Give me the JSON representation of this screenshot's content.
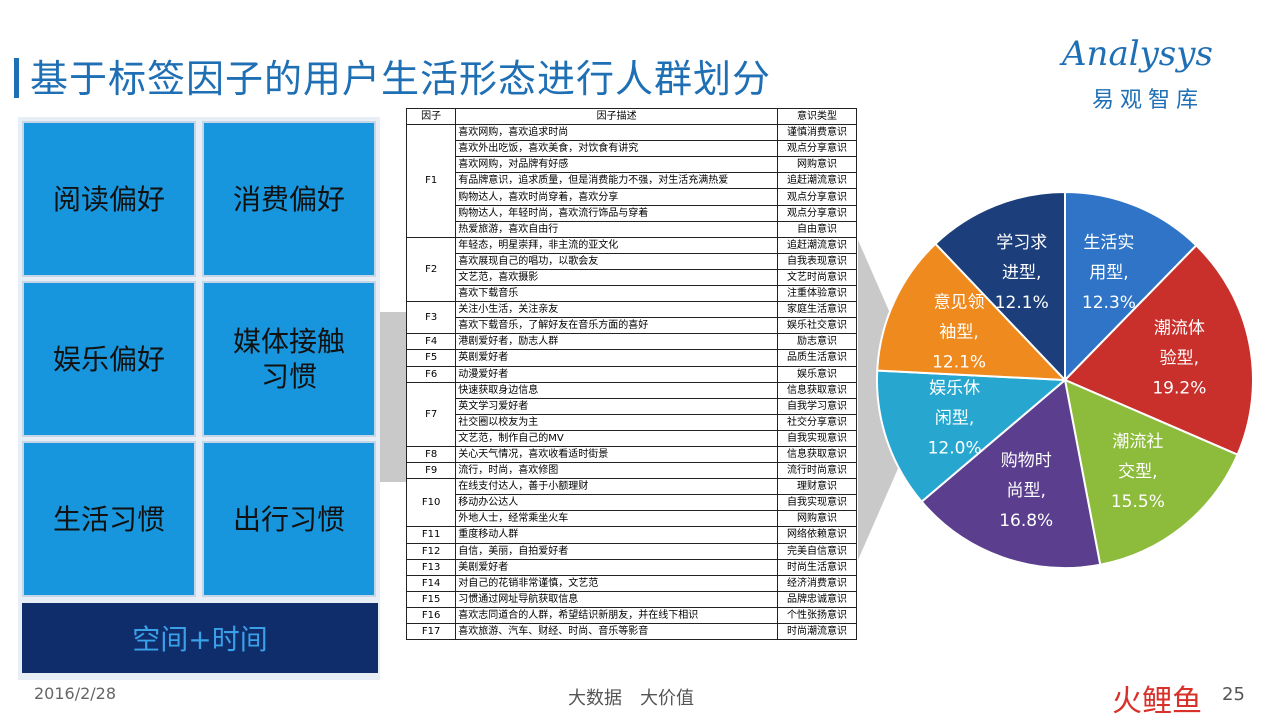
{
  "header": {
    "title": "基于标签因子的用户生活形态进行人群划分"
  },
  "logo": {
    "en": "Analysys",
    "cn": "易观智库"
  },
  "tiles": [
    "阅读偏好",
    "消费偏好",
    "娱乐偏好",
    "媒体接触习惯",
    "生活习惯",
    "出行习惯"
  ],
  "tile_bottom": "空间+时间",
  "table": {
    "headers": [
      "因子",
      "因子描述",
      "意识类型"
    ],
    "groups": [
      {
        "factor": "F1",
        "rows": [
          [
            "喜欢网购，喜欢追求时尚",
            "谨慎消费意识"
          ],
          [
            "喜欢外出吃饭，喜欢美食，对饮食有讲究",
            "观点分享意识"
          ],
          [
            "喜欢网购，对品牌有好感",
            "网购意识"
          ],
          [
            "有品牌意识，追求质量，但是消费能力不强，对生活充满热爱",
            "追赶潮流意识"
          ],
          [
            "购物达人，喜欢时尚穿着，喜欢分享",
            "观点分享意识"
          ],
          [
            "购物达人，年轻时尚，喜欢流行饰品与穿着",
            "观点分享意识"
          ],
          [
            "热爱旅游，喜欢自由行",
            "自由意识"
          ]
        ]
      },
      {
        "factor": "F2",
        "rows": [
          [
            "年轻态，明星崇拜，非主流的亚文化",
            "追赶潮流意识"
          ],
          [
            "喜欢展现自己的唱功，以歌会友",
            "自我表现意识"
          ],
          [
            "文艺范，喜欢摄影",
            "文艺时尚意识"
          ],
          [
            "喜欢下载音乐",
            "注重体验意识"
          ]
        ]
      },
      {
        "factor": "F3",
        "rows": [
          [
            "关注小生活，关注亲友",
            "家庭生活意识"
          ],
          [
            "喜欢下载音乐，了解好友在音乐方面的喜好",
            "娱乐社交意识"
          ]
        ]
      },
      {
        "factor": "F4",
        "rows": [
          [
            "港剧爱好者，励志人群",
            "励志意识"
          ]
        ]
      },
      {
        "factor": "F5",
        "rows": [
          [
            "英剧爱好者",
            "品质生活意识"
          ]
        ]
      },
      {
        "factor": "F6",
        "rows": [
          [
            "动漫爱好者",
            "娱乐意识"
          ]
        ]
      },
      {
        "factor": "F7",
        "rows": [
          [
            "快速获取身边信息",
            "信息获取意识"
          ],
          [
            "英文学习爱好者",
            "自我学习意识"
          ],
          [
            "社交圈以校友为主",
            "社交分享意识"
          ],
          [
            "文艺范，制作自己的MV",
            "自我实现意识"
          ]
        ]
      },
      {
        "factor": "F8",
        "rows": [
          [
            "关心天气情况，喜欢收看适时街景",
            "信息获取意识"
          ]
        ]
      },
      {
        "factor": "F9",
        "rows": [
          [
            "流行，时尚，喜欢修图",
            "流行时尚意识"
          ]
        ]
      },
      {
        "factor": "F10",
        "rows": [
          [
            "在线支付达人，善于小额理财",
            "理财意识"
          ],
          [
            "移动办公达人",
            "自我实现意识"
          ],
          [
            "外地人士，经常乘坐火车",
            "网购意识"
          ]
        ]
      },
      {
        "factor": "F11",
        "rows": [
          [
            "重度移动人群",
            "网络依赖意识"
          ]
        ]
      },
      {
        "factor": "F12",
        "rows": [
          [
            "自信，美丽，自拍爱好者",
            "完美自信意识"
          ]
        ]
      },
      {
        "factor": "F13",
        "rows": [
          [
            "美剧爱好者",
            "时尚生活意识"
          ]
        ]
      },
      {
        "factor": "F14",
        "rows": [
          [
            "对自己的花销非常谨慎，文艺范",
            "经济消费意识"
          ]
        ]
      },
      {
        "factor": "F15",
        "rows": [
          [
            "习惯通过网址导航获取信息",
            "品牌忠诚意识"
          ]
        ]
      },
      {
        "factor": "F16",
        "rows": [
          [
            "喜欢志同道合的人群，希望结识新朋友，并在线下相识",
            "个性张扬意识"
          ]
        ]
      },
      {
        "factor": "F17",
        "rows": [
          [
            "喜欢旅游、汽车、财经、时尚、音乐等影音",
            "时尚潮流意识"
          ]
        ]
      }
    ]
  },
  "chart_data": {
    "type": "pie",
    "slices": [
      {
        "line1": "生活实",
        "line2": "用型,",
        "value": 12.3,
        "pct": "12.3%",
        "color": "#2f74c6"
      },
      {
        "line1": "潮流体",
        "line2": "验型,",
        "value": 19.2,
        "pct": "19.2%",
        "color": "#c9302c"
      },
      {
        "line1": "潮流社",
        "line2": "交型,",
        "value": 15.5,
        "pct": "15.5%",
        "color": "#8dbb3c"
      },
      {
        "line1": "购物时",
        "line2": "尚型,",
        "value": 16.8,
        "pct": "16.8%",
        "color": "#5b3f8e"
      },
      {
        "line1": "娱乐休",
        "line2": "闲型,",
        "value": 12.0,
        "pct": "12.0%",
        "color": "#27a7cf"
      },
      {
        "line1": "意见领",
        "line2": "袖型,",
        "value": 12.1,
        "pct": "12.1%",
        "color": "#ee8a1e"
      },
      {
        "line1": "学习求",
        "line2": "进型,",
        "value": 12.1,
        "pct": "12.1%",
        "color": "#1c3f7c"
      }
    ]
  },
  "footer": {
    "date": "2016/2/28",
    "middle": "大数据　大价值",
    "brand": "火鲤鱼",
    "page": "25"
  }
}
